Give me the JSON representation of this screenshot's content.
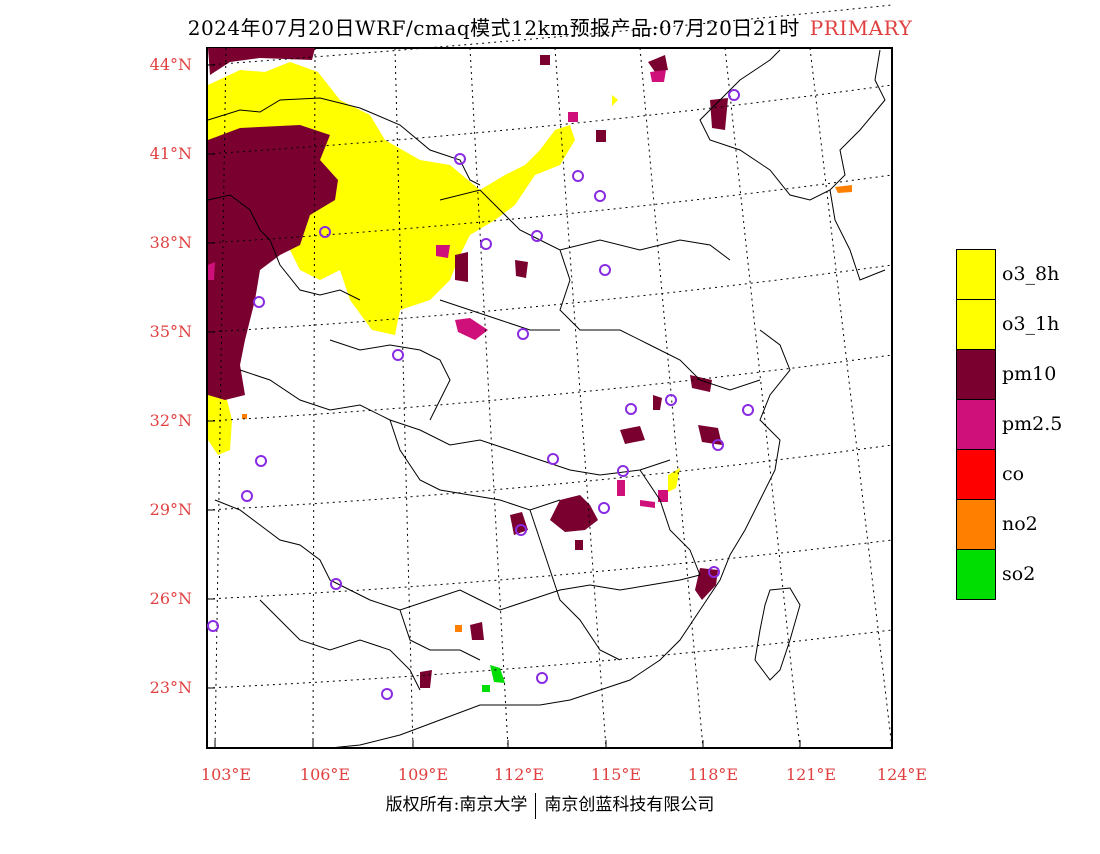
{
  "title": {
    "main": "2024年07月20日WRF/cmaq模式12km预报产品:07月20日21时",
    "tag": "PRIMARY"
  },
  "lat_labels": [
    "44°N",
    "41°N",
    "38°N",
    "35°N",
    "32°N",
    "29°N",
    "26°N",
    "23°N"
  ],
  "lon_labels": [
    "103°E",
    "106°E",
    "109°E",
    "112°E",
    "115°E",
    "118°E",
    "121°E",
    "124°E"
  ],
  "legend": [
    {
      "label": "o3_8h",
      "color": "#ffff00"
    },
    {
      "label": "o3_1h",
      "color": "#ffff00"
    },
    {
      "label": "pm10",
      "color": "#7a0030"
    },
    {
      "label": "pm2.5",
      "color": "#d0107a"
    },
    {
      "label": "co",
      "color": "#ff0000"
    },
    {
      "label": "no2",
      "color": "#ff8000"
    },
    {
      "label": "so2",
      "color": "#00dd00"
    }
  ],
  "footer": {
    "left": "版权所有:南京大学",
    "right": "南京创蓝科技有限公司"
  },
  "colors": {
    "accent": "#e04040",
    "o3": "#ffff00",
    "pm10": "#7a0030",
    "pm25": "#d0107a",
    "no2": "#ff8000",
    "so2": "#00dd00",
    "station": "#8a2be2"
  }
}
